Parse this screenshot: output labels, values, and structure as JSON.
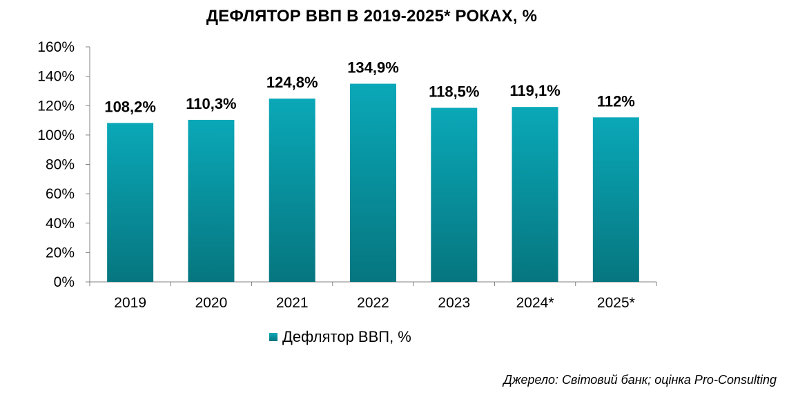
{
  "chart_data": {
    "type": "bar",
    "title": "ДЕФЛЯТОР ВВП В 2019-2025* РОКАХ, %",
    "categories": [
      "2019",
      "2020",
      "2021",
      "2022",
      "2023",
      "2024*",
      "2025*"
    ],
    "series": [
      {
        "name": "Дефлятор ВВП, %",
        "values": [
          108.2,
          110.3,
          124.8,
          134.9,
          118.5,
          119.1,
          112
        ],
        "labels": [
          "108,2%",
          "110,3%",
          "124,8%",
          "134,9%",
          "118,5%",
          "119,1%",
          "112%"
        ]
      }
    ],
    "ylim": [
      0,
      160
    ],
    "yticks": [
      0,
      20,
      40,
      60,
      80,
      100,
      120,
      140,
      160
    ],
    "ytick_labels": [
      "0%",
      "20%",
      "40%",
      "60%",
      "80%",
      "100%",
      "120%",
      "140%",
      "160%"
    ],
    "grid": false,
    "legend_position": "bottom",
    "source": "Джерело: Світовий банк; оцінка Pro-Consulting",
    "colors": {
      "bar_top": "#0aa8b8",
      "bar_bottom": "#06767f",
      "axis": "#808080"
    }
  }
}
